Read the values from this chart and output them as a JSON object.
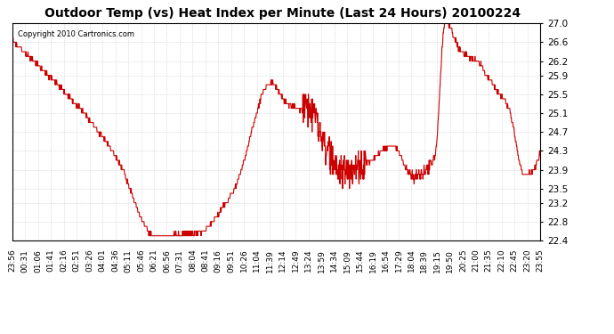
{
  "title": "Outdoor Temp (vs) Heat Index per Minute (Last 24 Hours) 20100224",
  "copyright_text": "Copyright 2010 Cartronics.com",
  "line_color": "#cc0000",
  "background_color": "#ffffff",
  "grid_color": "#aaaaaa",
  "ylim": [
    22.4,
    27.0
  ],
  "yticks": [
    22.4,
    22.8,
    23.2,
    23.5,
    23.9,
    24.3,
    24.7,
    25.1,
    25.5,
    25.9,
    26.2,
    26.6,
    27.0
  ],
  "xtick_labels": [
    "23:56",
    "00:31",
    "01:06",
    "01:41",
    "02:16",
    "02:51",
    "03:26",
    "04:01",
    "04:36",
    "05:11",
    "05:46",
    "06:21",
    "06:56",
    "07:31",
    "08:04",
    "08:41",
    "09:16",
    "09:51",
    "10:26",
    "11:04",
    "11:39",
    "12:14",
    "12:49",
    "13:24",
    "13:59",
    "14:34",
    "15:09",
    "15:44",
    "16:19",
    "16:54",
    "17:29",
    "18:04",
    "18:39",
    "19:15",
    "19:50",
    "20:25",
    "21:00",
    "21:35",
    "22:10",
    "22:45",
    "23:20",
    "23:55"
  ],
  "num_points": 1440
}
